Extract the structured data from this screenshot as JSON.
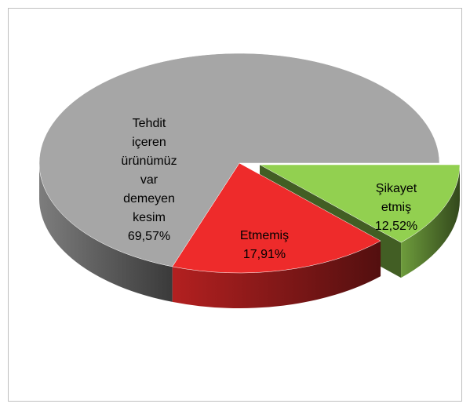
{
  "chart_data": {
    "type": "pie",
    "categories": [
      "Şikayet etmiş",
      "Etmemiş",
      "Tehdit içeren ürünümüz var demeyen kesim"
    ],
    "values": [
      12.52,
      17.91,
      69.57
    ],
    "value_labels": [
      "12,52%",
      "17,91%",
      "69,57%"
    ],
    "colors": [
      "#92d050",
      "#ee2b2b",
      "#a6a6a6"
    ]
  }
}
